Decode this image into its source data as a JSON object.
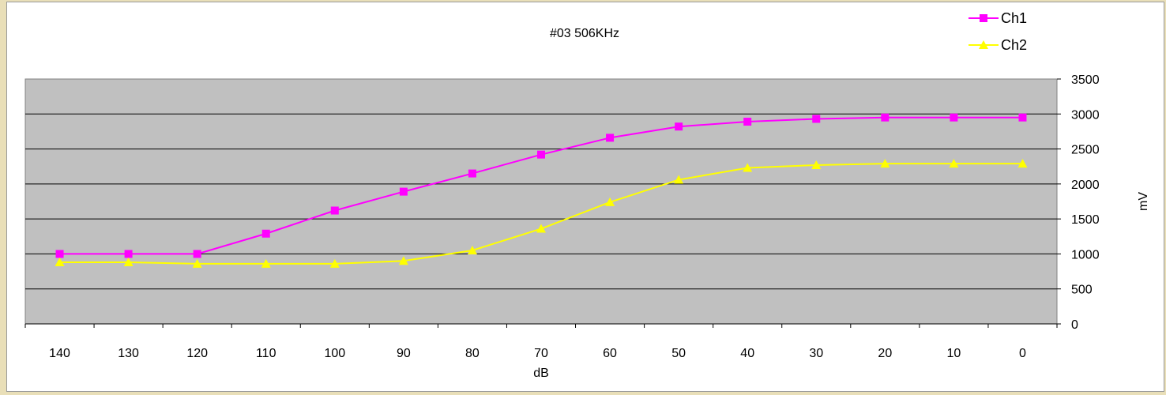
{
  "chart_data": {
    "type": "line",
    "title": "#03 506KHz",
    "xlabel": "dB",
    "ylabel": "mV",
    "x": [
      140,
      130,
      120,
      110,
      100,
      90,
      80,
      70,
      60,
      50,
      40,
      30,
      20,
      10,
      0
    ],
    "x_tick_labels": [
      "140",
      "130",
      "120",
      "110",
      "100",
      "90",
      "80",
      "70",
      "60",
      "50",
      "40",
      "30",
      "20",
      "10",
      "0"
    ],
    "ylim": [
      0,
      3500
    ],
    "y_ticks": [
      0,
      500,
      1000,
      1500,
      2000,
      2500,
      3000,
      3500
    ],
    "y_tick_labels": [
      "0",
      "500",
      "1000",
      "1500",
      "2000",
      "2500",
      "3000",
      "3500"
    ],
    "y_axis_side": "right",
    "grid": true,
    "plot_background": "#c0c0c0",
    "legend_position": "top-right",
    "series": [
      {
        "name": "Ch1",
        "color": "#ff00ff",
        "marker": "square",
        "values": [
          1000,
          1000,
          1000,
          1290,
          1620,
          1890,
          2150,
          2420,
          2660,
          2820,
          2890,
          2930,
          2950,
          2950,
          2950
        ]
      },
      {
        "name": "Ch2",
        "color": "#ffff00",
        "marker": "triangle",
        "values": [
          880,
          880,
          860,
          860,
          860,
          900,
          1050,
          1360,
          1740,
          2060,
          2230,
          2270,
          2290,
          2290,
          2290
        ]
      }
    ]
  }
}
